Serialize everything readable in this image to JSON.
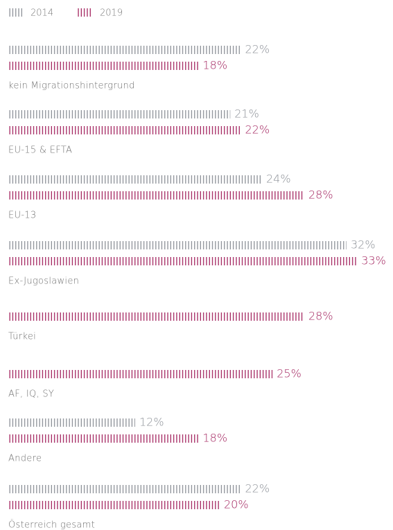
{
  "chart_data": {
    "type": "bar",
    "categories": [
      "kein Migrationshintergrund",
      "EU-15 & EFTA",
      "EU-13",
      "Ex-Jugoslawien",
      "Türkei",
      "AF, IQ, SY",
      "Andere",
      "Österreich gesamt"
    ],
    "series": [
      {
        "name": "2014",
        "color": "#8c9097",
        "values": [
          22,
          21,
          24,
          32,
          null,
          null,
          12,
          22
        ],
        "value_labels": [
          "22%",
          "21%",
          "24%",
          "32%",
          null,
          null,
          "12%",
          "22%"
        ]
      },
      {
        "name": "2019",
        "color": "#a3245f",
        "values": [
          18,
          22,
          28,
          33,
          28,
          25,
          18,
          20
        ],
        "value_labels": [
          "18%",
          "22%",
          "28%",
          "33%",
          "28%",
          "25%",
          "18%",
          "20%"
        ]
      }
    ]
  }
}
